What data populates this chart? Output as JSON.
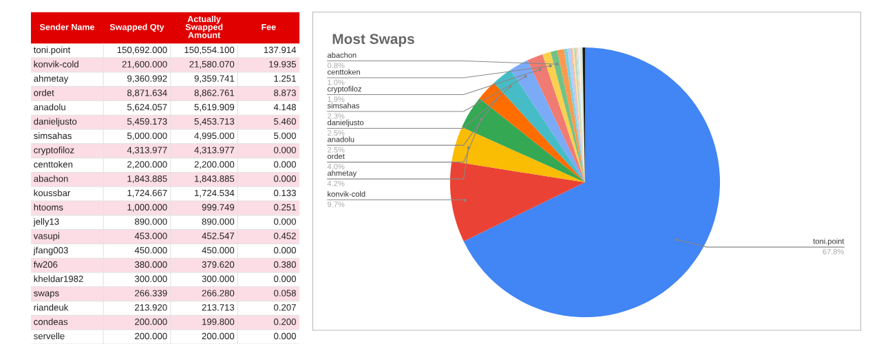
{
  "chart_data": [
    {
      "type": "other",
      "categories": [
        "Sender Name",
        "Swapped Qty",
        "Actually Swapped Amount",
        "Fee"
      ],
      "cell_labels": [
        [
          "toni.point",
          "150,692.000",
          "150,554.100",
          "137.914"
        ],
        [
          "konvik-cold",
          "21,600.000",
          "21,580.070",
          "19.935"
        ],
        [
          "ahmetay",
          "9,360.992",
          "9,359.741",
          "1.251"
        ],
        [
          "ordet",
          "8,871.634",
          "8,862.761",
          "8.873"
        ],
        [
          "anadolu",
          "5,624.057",
          "5,619.909",
          "4.148"
        ],
        [
          "danieljusto",
          "5,459.173",
          "5,453.713",
          "5.460"
        ],
        [
          "simsahas",
          "5,000.000",
          "4,995.000",
          "5.000"
        ],
        [
          "cryptofiloz",
          "4,313.977",
          "4,313.977",
          "0.000"
        ],
        [
          "centtoken",
          "2,200.000",
          "2,200.000",
          "0.000"
        ],
        [
          "abachon",
          "1,843.885",
          "1,843.885",
          "0.000"
        ],
        [
          "koussbar",
          "1,724.667",
          "1,724.534",
          "0.133"
        ],
        [
          "htooms",
          "1,000.000",
          "999.749",
          "0.251"
        ],
        [
          "jelly13",
          "890.000",
          "890.000",
          "0.000"
        ],
        [
          "vasupi",
          "453.000",
          "452.547",
          "0.452"
        ],
        [
          "jfang003",
          "450.000",
          "450.000",
          "0.000"
        ],
        [
          "fw206",
          "380.000",
          "379.620",
          "0.380"
        ],
        [
          "kheldar1982",
          "300.000",
          "300.000",
          "0.000"
        ],
        [
          "swaps",
          "266.339",
          "266.280",
          "0.058"
        ],
        [
          "riandeuk",
          "213.920",
          "213.713",
          "0.207"
        ],
        [
          "condeas",
          "200.000",
          "199.800",
          "0.200"
        ],
        [
          "servelle",
          "200.000",
          "200.000",
          "0.000"
        ]
      ]
    },
    {
      "type": "pie",
      "title": "Most Swaps",
      "categories": [
        "toni.point",
        "konvik-cold",
        "ahmetay",
        "ordet",
        "anadolu",
        "danieljusto",
        "simsahas",
        "cryptofiloz",
        "centtoken",
        "abachon",
        null,
        null,
        null,
        null,
        null,
        null,
        null,
        null,
        null,
        null,
        null,
        null,
        null
      ],
      "values": [
        67.8,
        9.7,
        4.2,
        4.0,
        2.5,
        2.5,
        2.3,
        1.9,
        1.0,
        0.8,
        0.8,
        0.4,
        0.4,
        0.2,
        0.2,
        0.2,
        0.1,
        0.1,
        0.1,
        0.1,
        0.1,
        0.3,
        0.3
      ],
      "value_labels": [
        "67.8%",
        "9.7%",
        "4.2%",
        "4.0%",
        "2.5%",
        "2.5%",
        "2.3%",
        "1.9%",
        "1.0%",
        "0.8%",
        null,
        null,
        null,
        null,
        null,
        null,
        null,
        null,
        null,
        null,
        null,
        null,
        null
      ],
      "colors": [
        "#4285f4",
        "#ea4335",
        "#fbbc04",
        "#34a853",
        "#ff6d01",
        "#46bdc6",
        "#7baaf7",
        "#f07b72",
        "#fcd04f",
        "#71c287",
        "#ff994d",
        "#7ed1d7",
        "#b3cefb",
        "#f7b4ae",
        "#fde49b",
        "#aedcba",
        "#ffc599",
        "#b5e8eb",
        "#d9e6fd",
        "#fbdad7",
        "#fef1cd",
        "#d7eedd",
        "#1a1a1a"
      ]
    }
  ]
}
